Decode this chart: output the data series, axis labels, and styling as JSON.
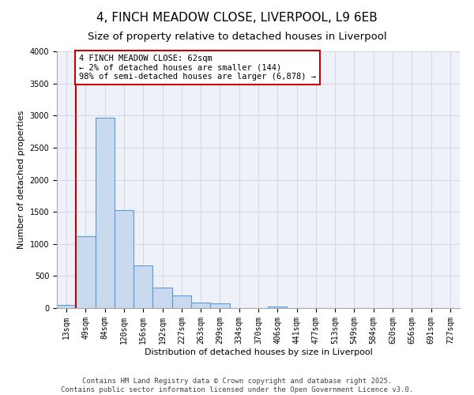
{
  "title": "4, FINCH MEADOW CLOSE, LIVERPOOL, L9 6EB",
  "subtitle": "Size of property relative to detached houses in Liverpool",
  "xlabel": "Distribution of detached houses by size in Liverpool",
  "ylabel": "Number of detached properties",
  "bin_labels": [
    "13sqm",
    "49sqm",
    "84sqm",
    "120sqm",
    "156sqm",
    "192sqm",
    "227sqm",
    "263sqm",
    "299sqm",
    "334sqm",
    "370sqm",
    "406sqm",
    "441sqm",
    "477sqm",
    "513sqm",
    "549sqm",
    "584sqm",
    "620sqm",
    "656sqm",
    "691sqm",
    "727sqm"
  ],
  "bar_heights": [
    50,
    1120,
    2970,
    1530,
    660,
    320,
    200,
    90,
    70,
    0,
    0,
    30,
    0,
    0,
    0,
    0,
    0,
    0,
    0,
    0,
    0
  ],
  "bar_color": "#c9d9ee",
  "bar_edge_color": "#5b9bd5",
  "bar_edge_width": 0.8,
  "vline_color": "#cc0000",
  "annotation_box_text": "4 FINCH MEADOW CLOSE: 62sqm\n← 2% of detached houses are smaller (144)\n98% of semi-detached houses are larger (6,878) →",
  "annotation_box_facecolor": "#ffffff",
  "annotation_box_edgecolor": "#cc0000",
  "ylim": [
    0,
    4000
  ],
  "yticks": [
    0,
    500,
    1000,
    1500,
    2000,
    2500,
    3000,
    3500,
    4000
  ],
  "grid_color": "#d0d8e8",
  "bg_color": "#eef2f8",
  "footer_line1": "Contains HM Land Registry data © Crown copyright and database right 2025.",
  "footer_line2": "Contains public sector information licensed under the Open Government Licence v3.0.",
  "title_fontsize": 11,
  "subtitle_fontsize": 9.5,
  "axis_label_fontsize": 8,
  "tick_fontsize": 7,
  "annotation_fontsize": 7.5,
  "footer_fontsize": 6.5
}
